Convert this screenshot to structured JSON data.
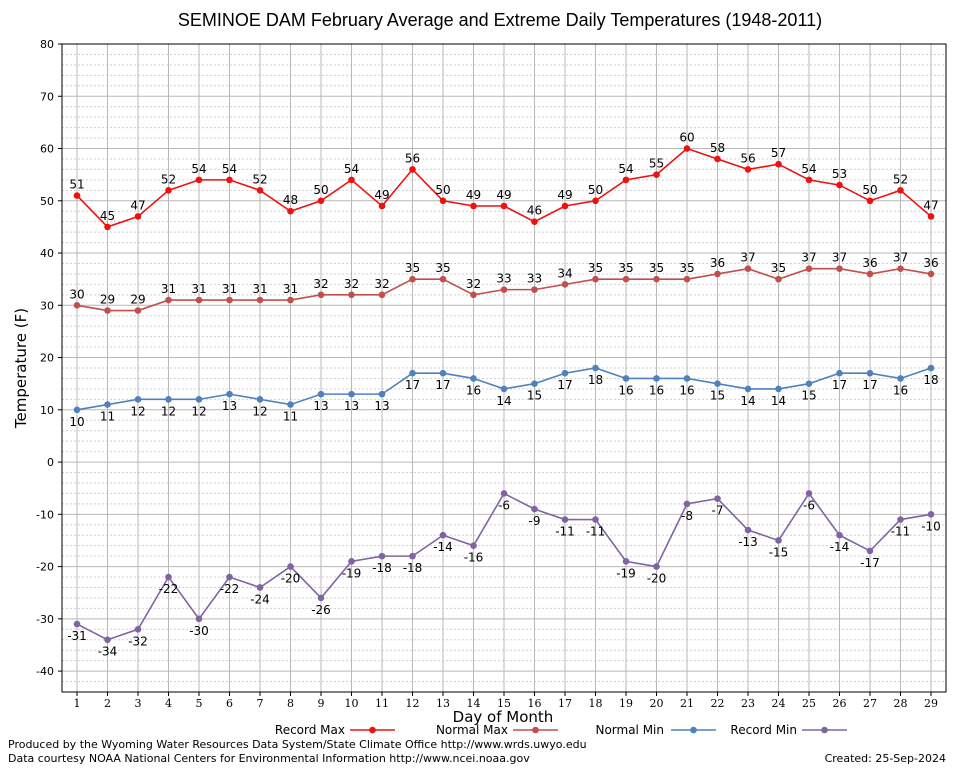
{
  "chart_data": {
    "type": "line",
    "title": "SEMINOE DAM February Average and Extreme Daily Temperatures (1948-2011)",
    "xlabel": "Day of Month",
    "ylabel": "Temperature (F)",
    "x": [
      1,
      2,
      3,
      4,
      5,
      6,
      7,
      8,
      9,
      10,
      11,
      12,
      13,
      14,
      15,
      16,
      17,
      18,
      19,
      20,
      21,
      22,
      23,
      24,
      25,
      26,
      27,
      28,
      29
    ],
    "ylim": [
      -44,
      80
    ],
    "yticks": [
      -40,
      -30,
      -20,
      -10,
      0,
      10,
      20,
      30,
      40,
      50,
      60,
      70,
      80
    ],
    "grid": true,
    "legend_position": "bottom",
    "series": [
      {
        "name": "Record Max",
        "color": "#ee1111",
        "values": [
          51,
          45,
          47,
          52,
          54,
          54,
          52,
          48,
          50,
          54,
          49,
          56,
          50,
          49,
          49,
          46,
          49,
          50,
          54,
          55,
          60,
          58,
          56,
          57,
          54,
          53,
          50,
          52,
          47
        ]
      },
      {
        "name": "Normal Max",
        "color": "#c0504d",
        "values": [
          30,
          29,
          29,
          31,
          31,
          31,
          31,
          31,
          32,
          32,
          32,
          35,
          35,
          32,
          33,
          33,
          34,
          35,
          35,
          35,
          35,
          36,
          37,
          35,
          37,
          37,
          36,
          37,
          36
        ]
      },
      {
        "name": "Normal Min",
        "color": "#4f81bd",
        "values": [
          10,
          11,
          12,
          12,
          12,
          13,
          12,
          11,
          13,
          13,
          13,
          17,
          17,
          16,
          14,
          15,
          17,
          18,
          16,
          16,
          16,
          15,
          14,
          14,
          15,
          17,
          17,
          16,
          18
        ]
      },
      {
        "name": "Record Min",
        "color": "#8064a2",
        "values": [
          -31,
          -34,
          -32,
          -22,
          -30,
          -22,
          -24,
          -20,
          -26,
          -19,
          -18,
          -18,
          -14,
          -16,
          -6,
          -9,
          -11,
          -11,
          -19,
          -20,
          -8,
          -7,
          -13,
          -15,
          -6,
          -14,
          -17,
          -11,
          -10
        ]
      }
    ]
  },
  "footer": {
    "credit_line1": "Produced by the Wyoming Water Resources Data System/State Climate Office http://www.wrds.uwyo.edu",
    "credit_line2": "Data courtesy NOAA National Centers for Environmental Information http://www.ncei.noaa.gov",
    "created": "Created:  25-Sep-2024"
  }
}
